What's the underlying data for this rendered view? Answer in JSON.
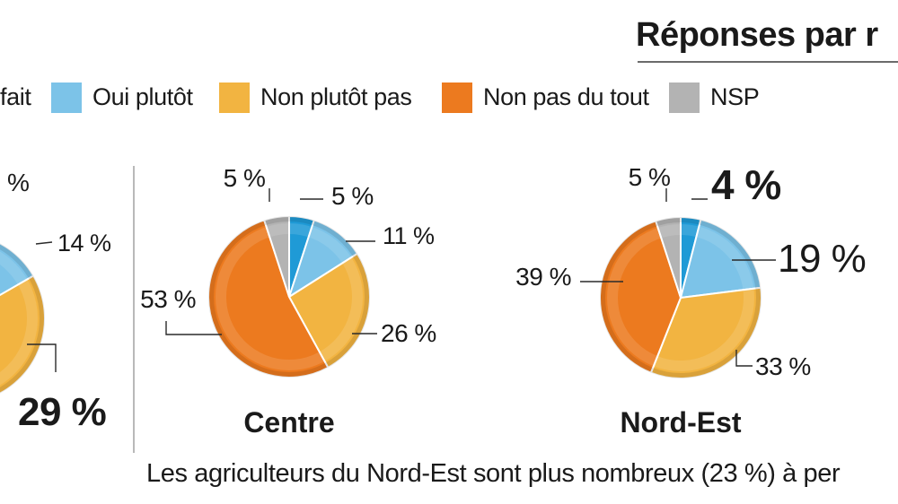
{
  "title": "Réponses par r",
  "legend": [
    {
      "label": "fait",
      "color": "#1f9ad6"
    },
    {
      "label": "Oui plutôt",
      "color": "#7cc3e8"
    },
    {
      "label": "Non plutôt pas",
      "color": "#f2b441"
    },
    {
      "label": "Non pas du tout",
      "color": "#ec7a1f"
    },
    {
      "label": "NSP",
      "color": "#b3b3b3"
    }
  ],
  "chart_data": [
    {
      "type": "pie",
      "title": "",
      "categories": [
        "Oui tout à fait",
        "Oui plutôt",
        "Non plutôt pas",
        "Non pas du tout",
        "NSP"
      ],
      "values": [
        null,
        14,
        29,
        null,
        null
      ],
      "labels": [
        "%",
        "14 %",
        "29 %"
      ]
    },
    {
      "type": "pie",
      "title": "Centre",
      "categories": [
        "Oui tout à fait",
        "Oui plutôt",
        "Non plutôt pas",
        "Non pas du tout",
        "NSP"
      ],
      "values": [
        5,
        11,
        26,
        53,
        5
      ],
      "labels": [
        "5 %",
        "11 %",
        "26 %",
        "53 %",
        "5 %"
      ]
    },
    {
      "type": "pie",
      "title": "Nord-Est",
      "categories": [
        "Oui tout à fait",
        "Oui plutôt",
        "Non plutôt pas",
        "Non pas du tout",
        "NSP"
      ],
      "values": [
        4,
        19,
        33,
        39,
        5
      ],
      "labels": [
        "4 %",
        "19 %",
        "33 %",
        "39 %",
        "5 %"
      ]
    }
  ],
  "footer": "Les agriculteurs du Nord-Est sont plus nombreux (23 %) à per"
}
